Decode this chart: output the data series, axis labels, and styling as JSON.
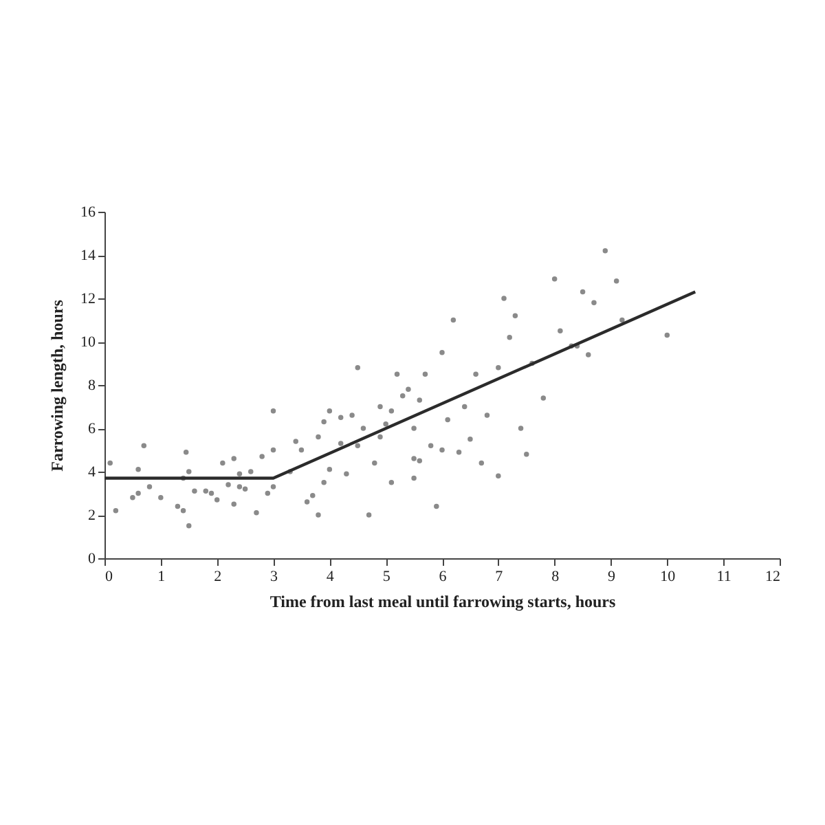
{
  "chart_data": {
    "type": "scatter",
    "xlabel": "Time from last meal until farrowing  starts, hours",
    "ylabel": "Farrowing  length, hours",
    "xlim": [
      0,
      12
    ],
    "xticks": [
      0,
      1,
      2,
      3,
      4,
      5,
      6,
      7,
      8,
      9,
      10,
      11,
      12
    ],
    "ylim": [
      0,
      16
    ],
    "yticks": [
      0,
      2,
      4,
      6,
      8,
      10,
      12,
      14,
      16
    ],
    "grid": false,
    "marker": "circle",
    "series": [
      {
        "color": "#8a8a8a",
        "x": [
          0.1,
          0.2,
          0.5,
          0.6,
          0.6,
          0.7,
          0.8,
          1.0,
          1.3,
          1.4,
          1.4,
          1.45,
          1.5,
          1.5,
          1.6,
          1.8,
          1.9,
          2.0,
          2.1,
          2.2,
          2.3,
          2.3,
          2.4,
          2.4,
          2.5,
          2.6,
          2.7,
          2.8,
          2.9,
          3.0,
          3.0,
          3.0,
          3.3,
          3.4,
          3.5,
          3.6,
          3.7,
          3.8,
          3.8,
          3.9,
          3.9,
          4.0,
          4.0,
          4.2,
          4.2,
          4.3,
          4.4,
          4.5,
          4.5,
          4.6,
          4.7,
          4.8,
          4.9,
          4.9,
          5.0,
          5.1,
          5.1,
          5.2,
          5.3,
          5.4,
          5.5,
          5.5,
          5.5,
          5.6,
          5.6,
          5.7,
          5.8,
          5.9,
          6.0,
          6.0,
          6.1,
          6.2,
          6.3,
          6.4,
          6.5,
          6.6,
          6.7,
          6.8,
          7.0,
          7.0,
          7.1,
          7.2,
          7.3,
          7.4,
          7.5,
          7.6,
          7.8,
          8.0,
          8.1,
          8.3,
          8.4,
          8.5,
          8.6,
          8.7,
          8.9,
          9.1,
          9.2,
          10.0
        ],
        "values": [
          4.4,
          2.2,
          2.8,
          3.0,
          4.1,
          5.2,
          3.3,
          2.8,
          2.4,
          2.2,
          3.7,
          4.9,
          4.0,
          1.5,
          3.1,
          3.1,
          3.0,
          2.7,
          4.4,
          3.4,
          2.5,
          4.6,
          3.9,
          3.3,
          3.2,
          4.0,
          2.1,
          4.7,
          3.0,
          3.3,
          6.8,
          5.0,
          4.0,
          5.4,
          5.0,
          2.6,
          2.9,
          2.0,
          5.6,
          6.3,
          3.5,
          4.1,
          6.8,
          5.3,
          6.5,
          3.9,
          6.6,
          5.2,
          8.8,
          6.0,
          2.0,
          4.4,
          5.6,
          7.0,
          6.2,
          6.8,
          3.5,
          8.5,
          7.5,
          7.8,
          6.0,
          4.6,
          3.7,
          7.3,
          4.5,
          8.5,
          5.2,
          2.4,
          9.5,
          5.0,
          6.4,
          11.0,
          4.9,
          7.0,
          5.5,
          8.5,
          4.4,
          6.6,
          3.8,
          8.8,
          12.0,
          10.2,
          11.2,
          6.0,
          4.8,
          9.0,
          7.4,
          12.9,
          10.5,
          9.8,
          9.8,
          12.3,
          9.4,
          11.8,
          14.2,
          12.8,
          11.0,
          10.3
        ]
      },
      {
        "type": "line",
        "marker": "none",
        "color": "#2b2b2b",
        "x": [
          0,
          3,
          10.5
        ],
        "values": [
          3.7,
          3.7,
          12.3
        ]
      }
    ]
  }
}
